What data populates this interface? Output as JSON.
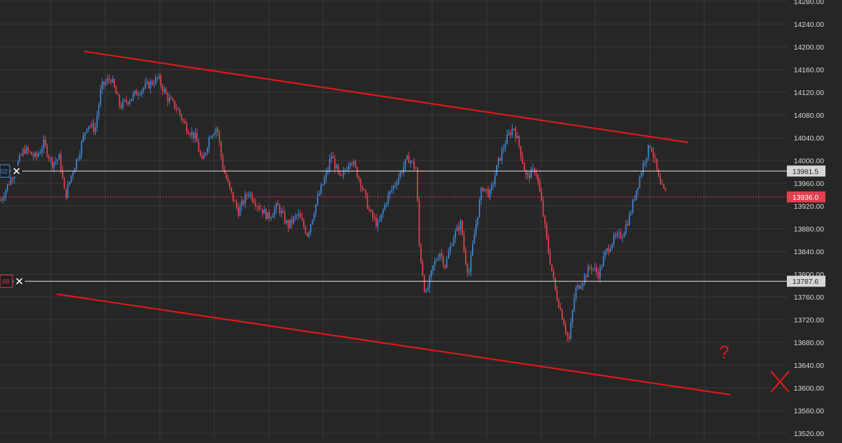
{
  "chart_data": {
    "type": "candlestick",
    "title": "",
    "xlabel": "",
    "ylabel": "",
    "ylim": [
      13520,
      14280
    ],
    "yticks": [
      13520,
      13560,
      13600,
      13640,
      13680,
      13720,
      13760,
      13800,
      13840,
      13880,
      13920,
      13960,
      14000,
      14040,
      14080,
      14120,
      14160,
      14200,
      14240,
      14280
    ],
    "grid": true,
    "colors": {
      "background": "#262626",
      "grid": "#3a3a3a",
      "up": "#3f83cf",
      "down": "#e0404f",
      "trendline": "#e01818",
      "axis_text": "#d8d8d8"
    },
    "price_lines": [
      {
        "price": 13981.5,
        "label": "13981.5",
        "style": "solid",
        "color": "#e8e8e8",
        "label_bg": "#d6d6d6",
        "label_fg": "#222222",
        "order_tag": "02",
        "tag_color": "#4a90e2"
      },
      {
        "price": 13936.0,
        "label": "13936.0",
        "style": "dotted",
        "color": "#e0404f",
        "label_bg": "#e0404f",
        "label_fg": "#ffffff"
      },
      {
        "price": 13787.6,
        "label": "13787.6",
        "style": "solid",
        "color": "#e8e8e8",
        "label_bg": "#d6d6d6",
        "label_fg": "#222222",
        "order_tag": ",68",
        "tag_color": "#e0404f"
      }
    ],
    "trendlines": [
      {
        "from": [
          0.107,
          14192
        ],
        "to": [
          0.874,
          14032
        ]
      },
      {
        "from": [
          0.072,
          13765
        ],
        "to": [
          0.928,
          13588
        ]
      }
    ],
    "annotations": [
      {
        "text": "?",
        "color": "#e01818",
        "x": 0.914,
        "y": 13652
      }
    ],
    "x_range": [
      0,
      1
    ],
    "price_path": [
      [
        0.0,
        13930
      ],
      [
        0.012,
        13965
      ],
      [
        0.03,
        14020
      ],
      [
        0.045,
        14005
      ],
      [
        0.055,
        14030
      ],
      [
        0.065,
        13995
      ],
      [
        0.075,
        14005
      ],
      [
        0.082,
        13935
      ],
      [
        0.09,
        13975
      ],
      [
        0.1,
        14015
      ],
      [
        0.11,
        14065
      ],
      [
        0.12,
        14055
      ],
      [
        0.128,
        14130
      ],
      [
        0.14,
        14145
      ],
      [
        0.152,
        14095
      ],
      [
        0.165,
        14110
      ],
      [
        0.178,
        14125
      ],
      [
        0.19,
        14135
      ],
      [
        0.2,
        14145
      ],
      [
        0.212,
        14110
      ],
      [
        0.225,
        14090
      ],
      [
        0.235,
        14060
      ],
      [
        0.248,
        14040
      ],
      [
        0.256,
        13995
      ],
      [
        0.266,
        14045
      ],
      [
        0.275,
        14060
      ],
      [
        0.282,
        13990
      ],
      [
        0.292,
        13945
      ],
      [
        0.302,
        13910
      ],
      [
        0.315,
        13945
      ],
      [
        0.328,
        13920
      ],
      [
        0.34,
        13900
      ],
      [
        0.352,
        13920
      ],
      [
        0.365,
        13885
      ],
      [
        0.378,
        13905
      ],
      [
        0.39,
        13870
      ],
      [
        0.402,
        13930
      ],
      [
        0.415,
        13980
      ],
      [
        0.42,
        14010
      ],
      [
        0.432,
        13965
      ],
      [
        0.445,
        14005
      ],
      [
        0.458,
        13960
      ],
      [
        0.47,
        13905
      ],
      [
        0.48,
        13885
      ],
      [
        0.49,
        13930
      ],
      [
        0.505,
        13970
      ],
      [
        0.518,
        14005
      ],
      [
        0.528,
        13985
      ],
      [
        0.532,
        13850
      ],
      [
        0.54,
        13760
      ],
      [
        0.55,
        13815
      ],
      [
        0.558,
        13840
      ],
      [
        0.565,
        13815
      ],
      [
        0.575,
        13865
      ],
      [
        0.585,
        13890
      ],
      [
        0.59,
        13830
      ],
      [
        0.595,
        13800
      ],
      [
        0.602,
        13870
      ],
      [
        0.612,
        13955
      ],
      [
        0.622,
        13940
      ],
      [
        0.632,
        13995
      ],
      [
        0.642,
        14035
      ],
      [
        0.652,
        14060
      ],
      [
        0.66,
        14020
      ],
      [
        0.668,
        13970
      ],
      [
        0.68,
        13985
      ],
      [
        0.688,
        13920
      ],
      [
        0.695,
        13850
      ],
      [
        0.705,
        13770
      ],
      [
        0.715,
        13720
      ],
      [
        0.722,
        13680
      ],
      [
        0.73,
        13770
      ],
      [
        0.74,
        13790
      ],
      [
        0.75,
        13815
      ],
      [
        0.76,
        13800
      ],
      [
        0.768,
        13835
      ],
      [
        0.778,
        13860
      ],
      [
        0.79,
        13870
      ],
      [
        0.8,
        13905
      ],
      [
        0.808,
        13950
      ],
      [
        0.818,
        14000
      ],
      [
        0.826,
        14030
      ],
      [
        0.832,
        13995
      ],
      [
        0.838,
        13955
      ],
      [
        0.846,
        13940
      ]
    ]
  }
}
